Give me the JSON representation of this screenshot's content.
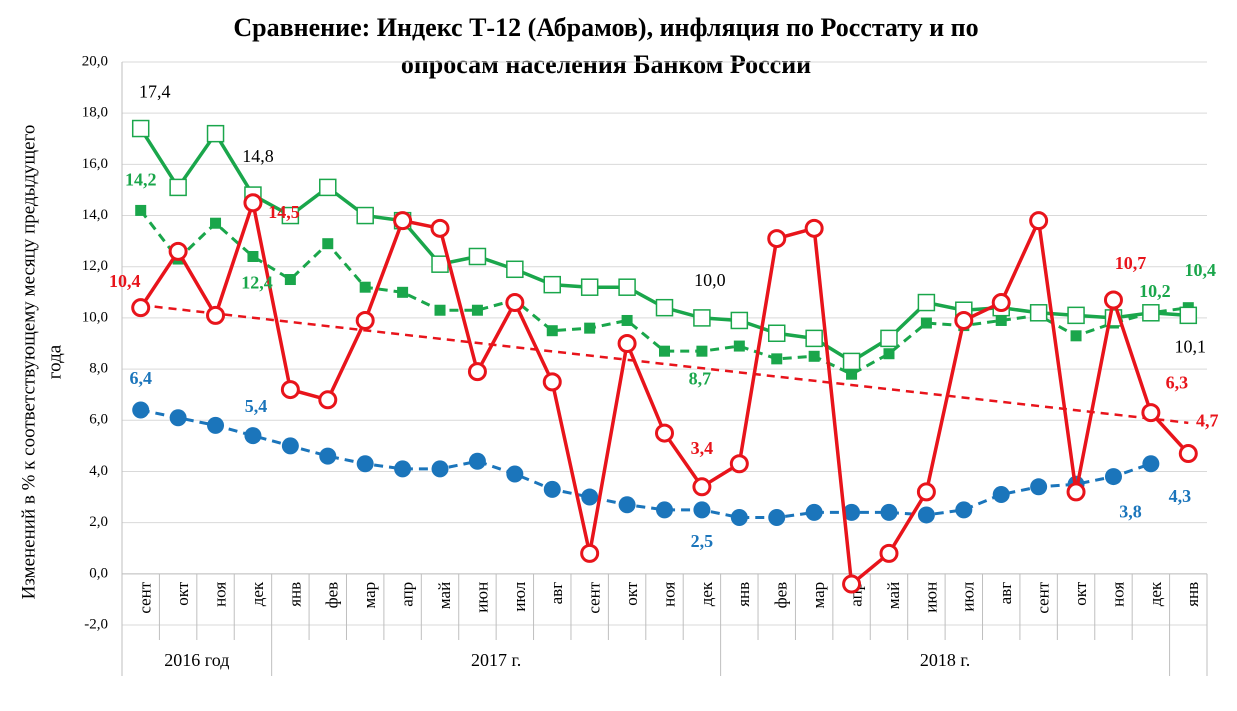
{
  "chart_data": {
    "type": "line",
    "title": [
      "Сравнение: Индекс Т-12 (Абрамов), инфляция по Росстату и по",
      "опросам населения Банком России"
    ],
    "y_label": [
      "Изменений в % к соответствующему месяцу предыдущего",
      "года"
    ],
    "categories": [
      "сент",
      "окт",
      "ноя",
      "дек",
      "янв",
      "фев",
      "мар",
      "апр",
      "май",
      "июн",
      "июл",
      "авг",
      "сент",
      "окт",
      "ноя",
      "дек",
      "янв",
      "фев",
      "мар",
      "апр",
      "май",
      "июн",
      "июл",
      "авг",
      "сент",
      "окт",
      "ноя",
      "дек",
      "янв"
    ],
    "groups": [
      {
        "label": "2016 год",
        "count": 4
      },
      {
        "label": "2017 г.",
        "count": 12
      },
      {
        "label": "2018 г.",
        "count": 12
      },
      {
        "label": null,
        "count": 1
      }
    ],
    "ylim": [
      -2,
      20
    ],
    "yticks": [
      {
        "value": -2,
        "label": "-2,0"
      },
      {
        "value": 0,
        "label": "0,0"
      },
      {
        "value": 2,
        "label": "2,0"
      },
      {
        "value": 4,
        "label": "4,0"
      },
      {
        "value": 6,
        "label": "6,0"
      },
      {
        "value": 8,
        "label": "8,0"
      },
      {
        "value": 10,
        "label": "10,0"
      },
      {
        "value": 12,
        "label": "12,0"
      },
      {
        "value": 14,
        "label": "14,0"
      },
      {
        "value": 16,
        "label": "16,0"
      },
      {
        "value": 18,
        "label": "18,0"
      },
      {
        "value": 20,
        "label": "20,0"
      }
    ],
    "grid": true,
    "series": [
      {
        "color": "#1aa64b",
        "label_color": "#000000",
        "marker": "open-square",
        "dashed": false,
        "values": [
          17.4,
          15.1,
          17.2,
          14.8,
          14.0,
          15.1,
          14.0,
          13.8,
          12.1,
          12.4,
          11.9,
          11.3,
          11.2,
          11.2,
          10.4,
          10.0,
          9.9,
          9.4,
          9.2,
          8.3,
          9.2,
          10.6,
          10.3,
          10.4,
          10.2,
          10.1,
          10.0,
          10.2,
          10.1
        ],
        "value_labels": [
          "17,4",
          null,
          null,
          "14,8",
          null,
          null,
          null,
          null,
          null,
          null,
          null,
          null,
          null,
          null,
          null,
          "10,0",
          null,
          null,
          null,
          null,
          null,
          null,
          null,
          null,
          null,
          null,
          null,
          null,
          "10,1"
        ]
      },
      {
        "color": "#1aa64b",
        "label_color": "#1aa64b",
        "marker": "square",
        "dashed": true,
        "values": [
          14.2,
          12.3,
          13.7,
          12.4,
          11.5,
          12.9,
          11.2,
          11.0,
          10.3,
          10.3,
          10.7,
          9.5,
          9.6,
          9.9,
          8.7,
          8.7,
          8.9,
          8.4,
          8.5,
          7.8,
          8.6,
          9.8,
          9.7,
          9.9,
          10.1,
          9.3,
          9.8,
          10.2,
          10.4
        ],
        "value_labels": [
          "14,2",
          null,
          null,
          "12,4",
          null,
          null,
          null,
          null,
          null,
          null,
          null,
          null,
          null,
          null,
          null,
          "8,7",
          null,
          null,
          null,
          null,
          null,
          null,
          null,
          null,
          null,
          null,
          null,
          "10,2",
          "10,4"
        ]
      },
      {
        "color": "#e8141b",
        "label_color": "#e8141b",
        "marker": "open-circle",
        "dashed": false,
        "values": [
          10.4,
          12.6,
          10.1,
          14.5,
          7.2,
          6.8,
          9.9,
          13.8,
          13.5,
          7.9,
          10.6,
          7.5,
          0.8,
          9.0,
          5.5,
          3.4,
          4.3,
          13.1,
          13.5,
          -0.4,
          0.8,
          3.2,
          9.9,
          10.6,
          13.8,
          3.2,
          10.7,
          6.3,
          4.7
        ],
        "value_labels": [
          "10,4",
          null,
          null,
          "14,5",
          null,
          null,
          null,
          null,
          null,
          null,
          null,
          null,
          null,
          null,
          null,
          "3,4",
          null,
          null,
          null,
          null,
          null,
          null,
          null,
          null,
          null,
          null,
          "10,7",
          "6,3",
          "4,7"
        ]
      },
      {
        "color": "#1b75bb",
        "label_color": "#1b75bb",
        "marker": "circle",
        "dashed": true,
        "values": [
          6.4,
          6.1,
          5.8,
          5.4,
          5.0,
          4.6,
          4.3,
          4.1,
          4.1,
          4.4,
          3.9,
          3.3,
          3.0,
          2.7,
          2.5,
          2.5,
          2.2,
          2.2,
          2.4,
          2.4,
          2.4,
          2.3,
          2.5,
          3.1,
          3.4,
          3.5,
          3.8,
          4.3,
          null
        ],
        "value_labels": [
          "6,4",
          null,
          null,
          "5,4",
          null,
          null,
          null,
          null,
          null,
          null,
          null,
          null,
          null,
          null,
          null,
          "2,5",
          null,
          null,
          null,
          null,
          null,
          null,
          null,
          null,
          null,
          null,
          "3,8",
          "4,3",
          null
        ]
      }
    ],
    "trendline": {
      "color": "#e8141b",
      "start": 10.5,
      "end": 5.9
    }
  }
}
